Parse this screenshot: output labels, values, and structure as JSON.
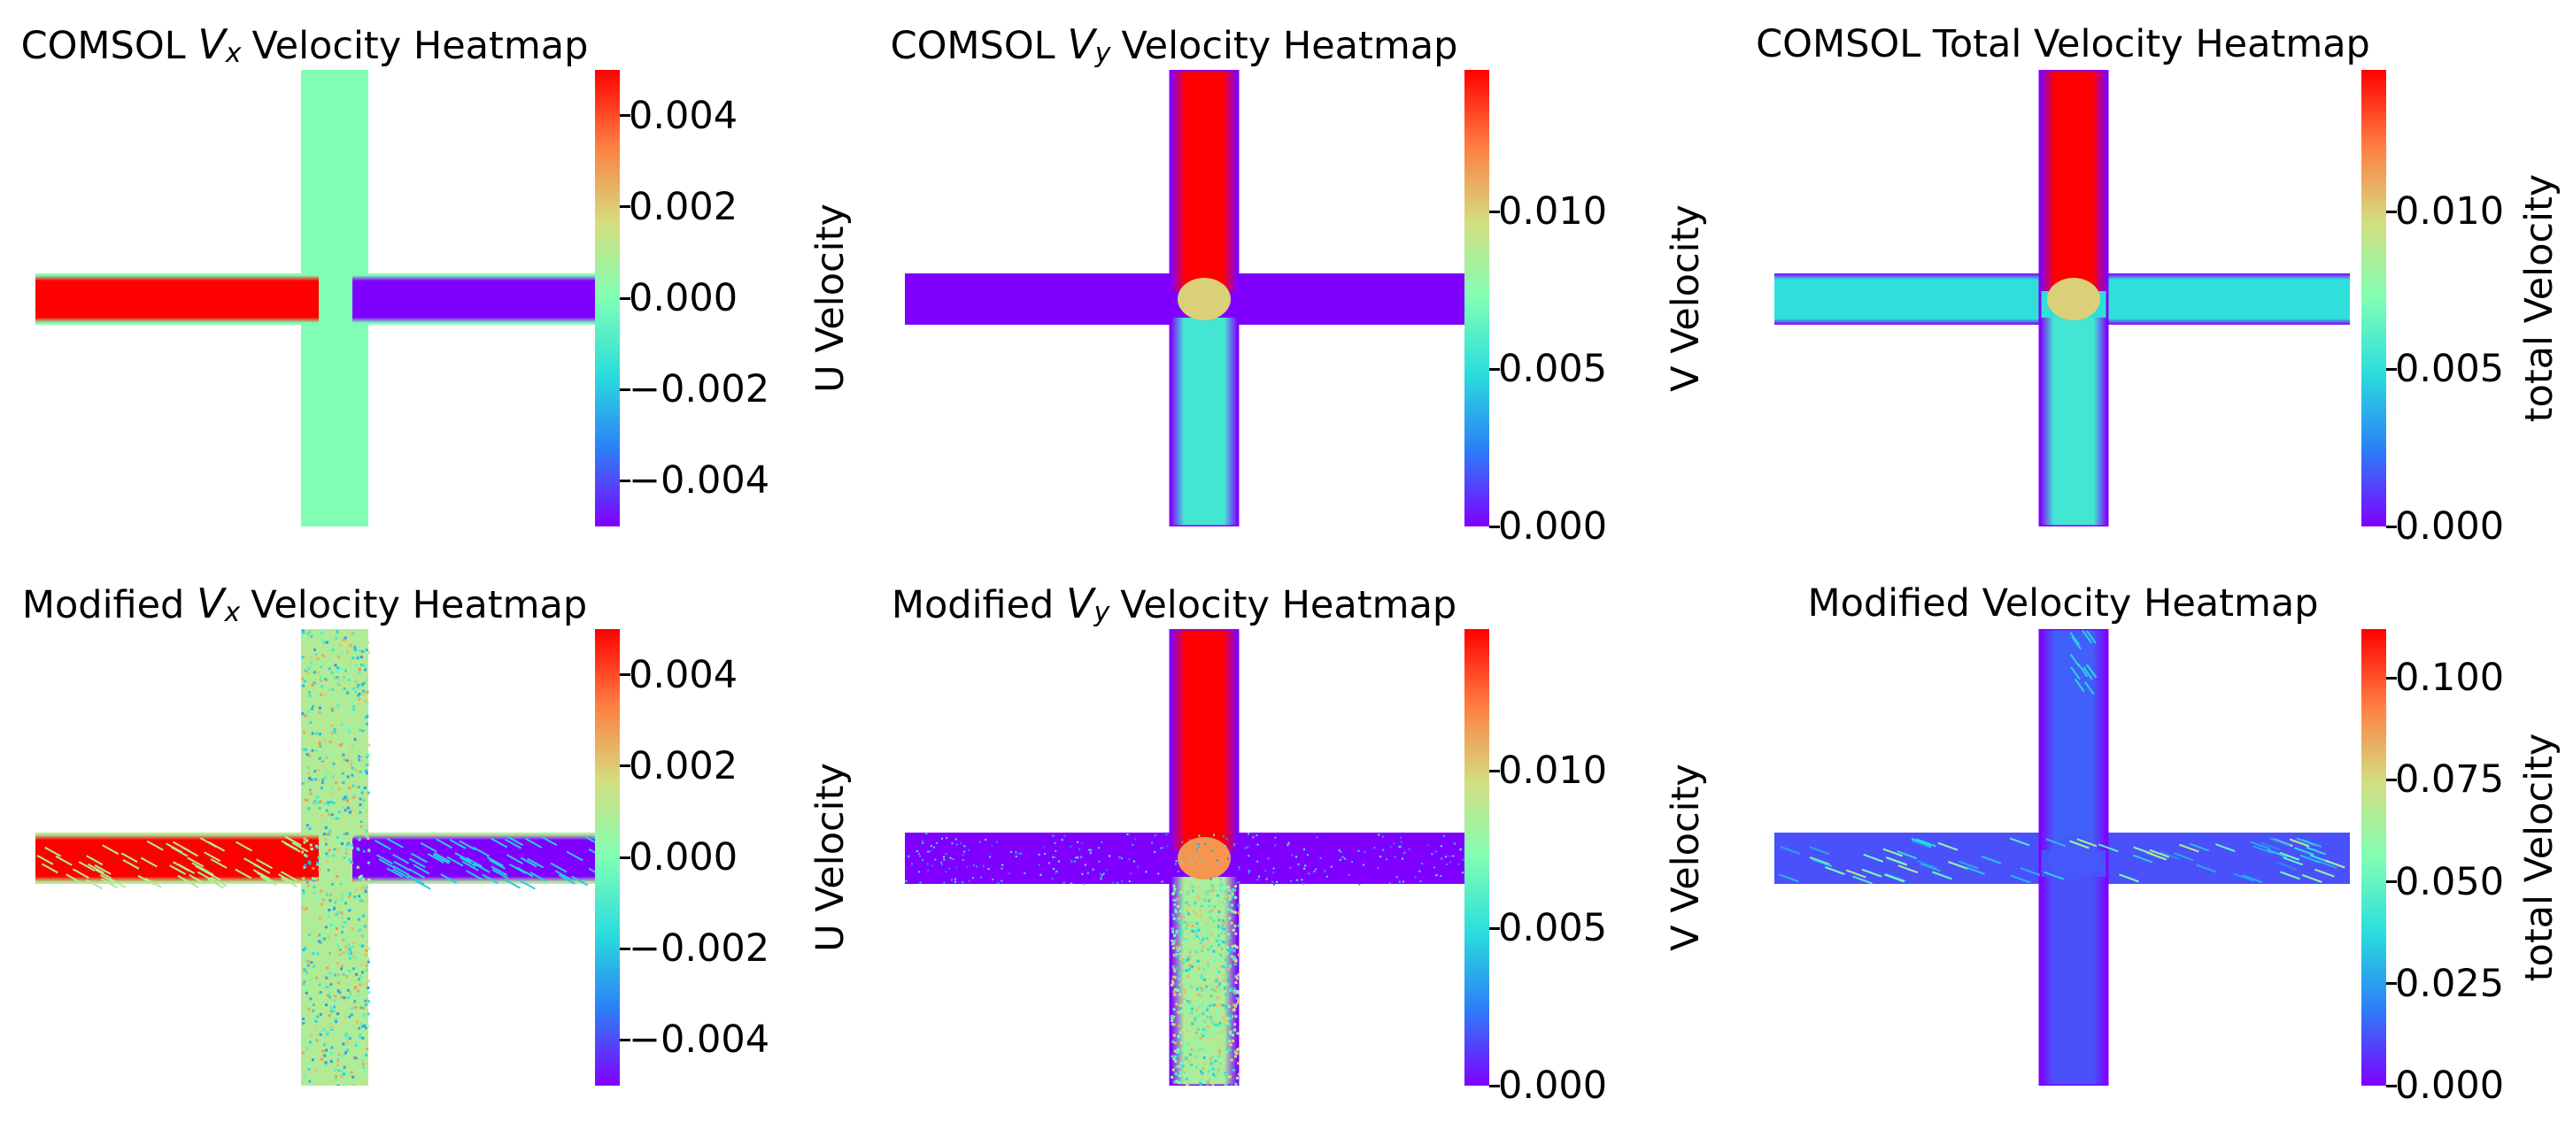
{
  "figure": {
    "description_colormap": "rainbow"
  },
  "colormap": [
    "#8000ff",
    "#2c7ef7",
    "#2adddd",
    "#80ffb4",
    "#d4dd80",
    "#ff7e41",
    "#ff0000"
  ],
  "chart_data": [
    {
      "id": "comsol-vx",
      "type": "heatmap",
      "title_prefix": "COMSOL",
      "title_var": "V",
      "title_sub": "x",
      "title_suffix": "Velocity Heatmap",
      "colorbar_label": "U Velocity",
      "vmin": -0.005,
      "vmax": 0.005,
      "ticks": [
        0.004,
        0.002,
        0.0,
        -0.002,
        -0.004
      ],
      "tick_labels": [
        "0.004",
        "0.002",
        "0.000",
        "−0.002",
        "−0.004"
      ],
      "field": {
        "vertical": 0.0,
        "left_branch": 0.005,
        "right_branch": -0.005,
        "junction": 0.0
      }
    },
    {
      "id": "comsol-vy",
      "type": "heatmap",
      "title_prefix": "COMSOL",
      "title_var": "V",
      "title_sub": "y",
      "title_suffix": "Velocity Heatmap",
      "colorbar_label": "V Velocity",
      "vmin": 0.0,
      "vmax": 0.0145,
      "ticks": [
        0.01,
        0.005,
        0.0
      ],
      "tick_labels": [
        "0.010",
        "0.005",
        "0.000"
      ],
      "field": {
        "top_branch": 0.0145,
        "bottom_branch": 0.0055,
        "horizontal": 0.0
      }
    },
    {
      "id": "comsol-total",
      "type": "heatmap",
      "title_text": "COMSOL Total Velocity Heatmap",
      "colorbar_label": "total Velocity",
      "vmin": 0.0,
      "vmax": 0.0145,
      "ticks": [
        0.01,
        0.005,
        0.0
      ],
      "tick_labels": [
        "0.010",
        "0.005",
        "0.000"
      ],
      "field": {
        "top_branch": 0.0145,
        "bottom_branch": 0.0055,
        "horizontal": 0.005
      }
    },
    {
      "id": "modified-vx",
      "type": "heatmap",
      "title_prefix": "Modified",
      "title_var": "V",
      "title_sub": "x",
      "title_suffix": "Velocity Heatmap",
      "colorbar_label": "U Velocity",
      "vmin": -0.005,
      "vmax": 0.005,
      "ticks": [
        0.004,
        0.002,
        0.0,
        -0.002,
        -0.004
      ],
      "tick_labels": [
        "0.004",
        "0.002",
        "0.000",
        "−0.002",
        "−0.004"
      ],
      "field": {
        "vertical": 0.001,
        "left_branch": 0.005,
        "right_branch": -0.005,
        "noisy": true
      }
    },
    {
      "id": "modified-vy",
      "type": "heatmap",
      "title_prefix": "Modified",
      "title_var": "V",
      "title_sub": "y",
      "title_suffix": "Velocity Heatmap",
      "colorbar_label": "V Velocity",
      "vmin": 0.0,
      "vmax": 0.0145,
      "ticks": [
        0.01,
        0.005,
        0.0
      ],
      "tick_labels": [
        "0.010",
        "0.005",
        "0.000"
      ],
      "field": {
        "top_branch": 0.0145,
        "bottom_branch": 0.0085,
        "horizontal": 0.0,
        "noisy": true
      }
    },
    {
      "id": "modified-total",
      "type": "heatmap",
      "title_text": "Modified Velocity Heatmap",
      "colorbar_label": "total Velocity",
      "vmin": 0.0,
      "vmax": 0.112,
      "ticks": [
        0.1,
        0.075,
        0.05,
        0.025,
        0.0
      ],
      "tick_labels": [
        "0.100",
        "0.075",
        "0.050",
        "0.025",
        "0.000"
      ],
      "field": {
        "top_branch": 0.014,
        "bottom_branch": 0.012,
        "horizontal": 0.012,
        "streaks": 0.05
      }
    }
  ]
}
